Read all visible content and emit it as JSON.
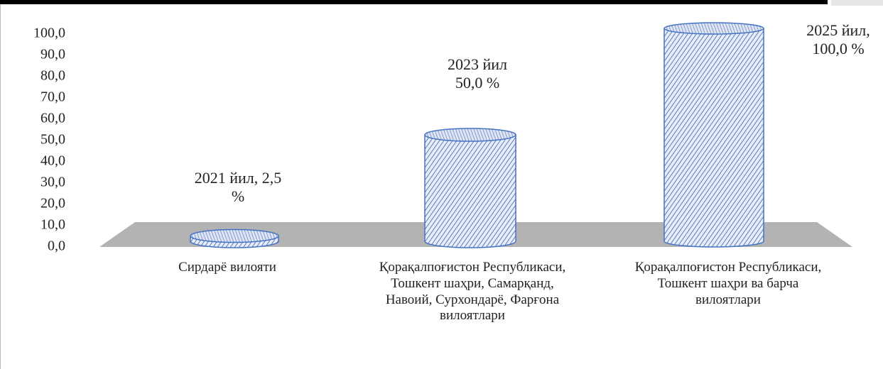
{
  "chart_data": {
    "type": "cylinder",
    "categories": [
      "Сирдарё вилояти",
      "Қорақалпоғистон Республикаси, Тошкент шаҳри, Самарқанд, Навоий, Сурхондарё, Фарғона вилоятлари",
      "Қорақалпоғистон Республикаси, Тошкент шаҳри ва барча вилоятлари"
    ],
    "values": [
      2.5,
      50,
      100
    ],
    "value_labels": [
      "2021 йил, 2,5 %",
      "2023 йил 50,0 %",
      "2025 йил, 100,0 %"
    ],
    "color": "#4472c4",
    "ylim": [
      0,
      100
    ],
    "yticks": [
      {
        "value": 0,
        "label": "0,0"
      },
      {
        "value": 10,
        "label": "10,0"
      },
      {
        "value": 20,
        "label": "20,0"
      },
      {
        "value": 30,
        "label": "30,0"
      },
      {
        "value": 40,
        "label": "40,0"
      },
      {
        "value": 50,
        "label": "50,0"
      },
      {
        "value": 60,
        "label": "60,0"
      },
      {
        "value": 70,
        "label": "70,0"
      },
      {
        "value": 80,
        "label": "80,0"
      },
      {
        "value": 90,
        "label": "90,0"
      },
      {
        "value": 100,
        "label": "100,0"
      }
    ]
  }
}
